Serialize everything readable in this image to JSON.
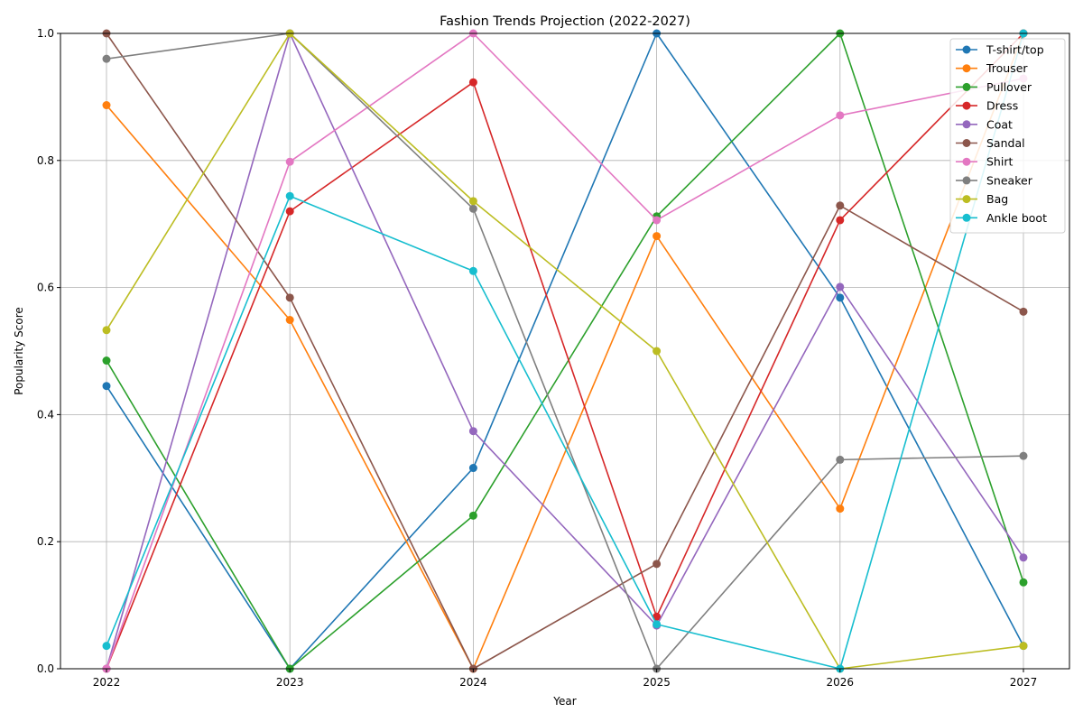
{
  "chart_data": {
    "type": "line",
    "title": "Fashion Trends Projection (2022-2027)",
    "xlabel": "Year",
    "ylabel": "Popularity Score",
    "x": [
      2022,
      2023,
      2024,
      2025,
      2026,
      2027
    ],
    "ylim": [
      0,
      1
    ],
    "yticks": [
      "0.0",
      "0.2",
      "0.4",
      "0.6",
      "0.8",
      "1.0"
    ],
    "grid": true,
    "legend_position": "top-right",
    "series": [
      {
        "name": "T-shirt/top",
        "color": "#1f77b4",
        "values": [
          0.445,
          0.0,
          0.316,
          1.0,
          0.584,
          0.036
        ]
      },
      {
        "name": "Trouser",
        "color": "#ff7f0e",
        "values": [
          0.887,
          0.549,
          0.0,
          0.681,
          0.252,
          1.0
        ]
      },
      {
        "name": "Pullover",
        "color": "#2ca02c",
        "values": [
          0.485,
          0.0,
          0.241,
          0.712,
          1.0,
          0.136
        ]
      },
      {
        "name": "Dress",
        "color": "#d62728",
        "values": [
          0.0,
          0.72,
          0.923,
          0.082,
          0.706,
          1.0
        ]
      },
      {
        "name": "Coat",
        "color": "#9467bd",
        "values": [
          0.0,
          1.0,
          0.374,
          0.068,
          0.601,
          0.175
        ]
      },
      {
        "name": "Sandal",
        "color": "#8c564b",
        "values": [
          1.0,
          0.584,
          0.0,
          0.165,
          0.729,
          0.562
        ]
      },
      {
        "name": "Shirt",
        "color": "#e377c2",
        "values": [
          0.0,
          0.798,
          1.0,
          0.706,
          0.871,
          0.929
        ]
      },
      {
        "name": "Sneaker",
        "color": "#7f7f7f",
        "values": [
          0.96,
          1.0,
          0.724,
          0.0,
          0.329,
          0.335
        ]
      },
      {
        "name": "Bag",
        "color": "#bcbd22",
        "values": [
          0.533,
          1.0,
          0.736,
          0.5,
          0.0,
          0.036
        ]
      },
      {
        "name": "Ankle boot",
        "color": "#17becf",
        "values": [
          0.036,
          0.744,
          0.626,
          0.07,
          0.0,
          1.0
        ]
      }
    ]
  }
}
